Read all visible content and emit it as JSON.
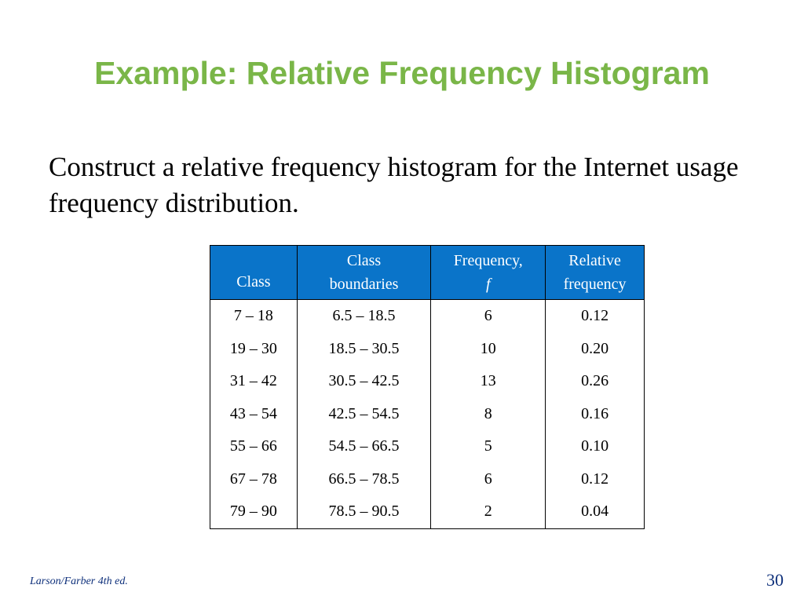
{
  "slide": {
    "title": "Example: Relative Frequency Histogram",
    "body": "Construct a relative frequency histogram for the Internet usage frequency distribution."
  },
  "table": {
    "headers": {
      "class": "Class",
      "boundaries_line1": "Class",
      "boundaries_line2": "boundaries",
      "frequency_line1": "Frequency,",
      "frequency_line2": "f",
      "relative_line1": "Relative",
      "relative_line2": "frequency"
    },
    "rows": [
      {
        "class": "7 – 18",
        "boundaries": "6.5 – 18.5",
        "frequency": "6",
        "relative": "0.12"
      },
      {
        "class": "19 – 30",
        "boundaries": "18.5 – 30.5",
        "frequency": "10",
        "relative": "0.20"
      },
      {
        "class": "31 – 42",
        "boundaries": "30.5 – 42.5",
        "frequency": "13",
        "relative": "0.26"
      },
      {
        "class": "43 – 54",
        "boundaries": "42.5 – 54.5",
        "frequency": "8",
        "relative": "0.16"
      },
      {
        "class": "55 – 66",
        "boundaries": "54.5 – 66.5",
        "frequency": "5",
        "relative": "0.10"
      },
      {
        "class": "67 – 78",
        "boundaries": "66.5 – 78.5",
        "frequency": "6",
        "relative": "0.12"
      },
      {
        "class": "79 – 90",
        "boundaries": "78.5 – 90.5",
        "frequency": "2",
        "relative": "0.04"
      }
    ]
  },
  "footer": {
    "source": "Larson/Farber 4th ed.",
    "page_number": "30"
  },
  "colors": {
    "title": "#7ab648",
    "table_header_bg": "#0a74c9",
    "footer_text": "#0d2f7a"
  }
}
